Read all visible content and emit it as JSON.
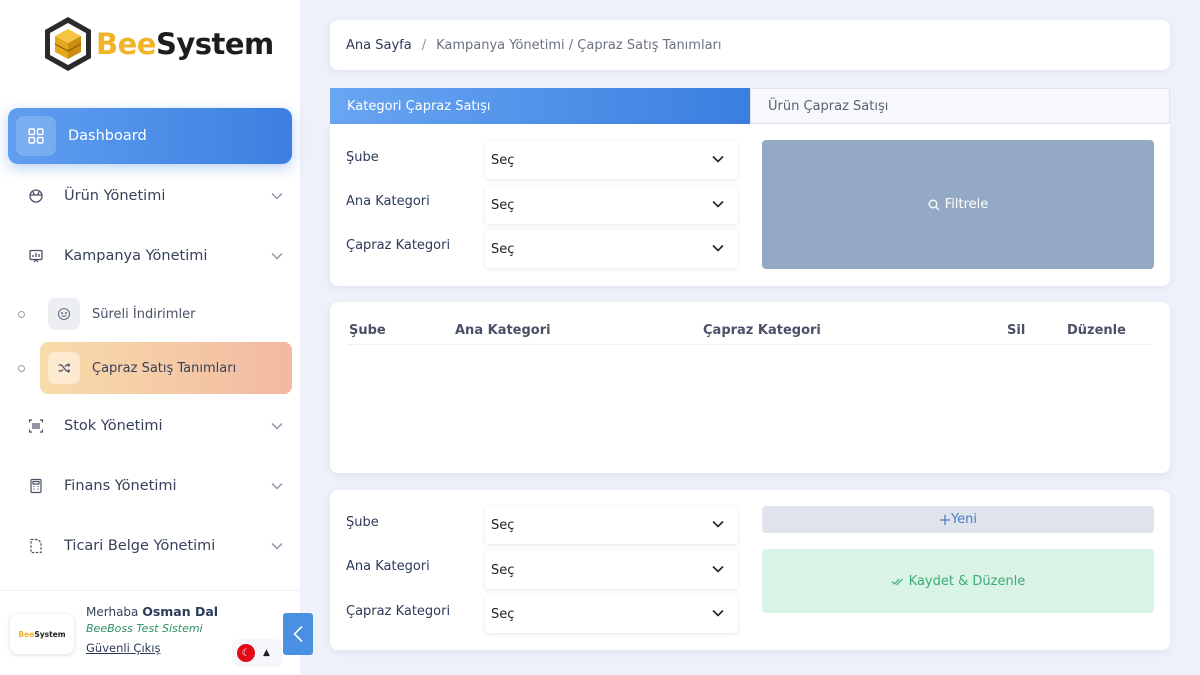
{
  "brand": {
    "name_part1": "Bee",
    "name_part2": "System",
    "avatar_part1": "Bee",
    "avatar_part2": "System"
  },
  "sidebar": {
    "items": [
      {
        "label": "Dashboard",
        "icon": "grid-icon",
        "active": true
      },
      {
        "label": "Ürün Yönetimi",
        "icon": "basket-icon"
      },
      {
        "label": "Kampanya Yönetimi",
        "icon": "presentation-chart-icon"
      },
      {
        "label": "Stok Yönetimi",
        "icon": "barcode-icon"
      },
      {
        "label": "Finans Yönetimi",
        "icon": "calculator-icon"
      },
      {
        "label": "Ticari Belge Yönetimi",
        "icon": "document-icon"
      }
    ],
    "sub_items": [
      {
        "label": "Süreli İndirimler",
        "icon": "smile-icon"
      },
      {
        "label": "Çapraz Satış Tanımları",
        "icon": "shuffle-icon",
        "active": true
      }
    ]
  },
  "user": {
    "greeting": "Merhaba",
    "name": "Osman Dal",
    "system": "BeeBoss Test Sistemi",
    "logout": "Güvenli Çıkış",
    "language_icon": "turkey-flag-icon",
    "flag_symbol": "☾"
  },
  "breadcrumb": {
    "home": "Ana Sayfa",
    "separator": "/",
    "rest": "Kampanya Yönetimi / Çapraz Satış Tanımları"
  },
  "tabs": [
    {
      "label": "Kategori Çapraz Satışı",
      "active": true
    },
    {
      "label": "Ürün Çapraz Satışı"
    }
  ],
  "filter": {
    "fields": [
      {
        "label": "Şube",
        "value": "Seç"
      },
      {
        "label": "Ana Kategori",
        "value": "Seç"
      },
      {
        "label": "Çapraz Kategori",
        "value": "Seç"
      }
    ],
    "button": "Filtrele"
  },
  "table": {
    "headers": [
      "Şube",
      "Ana Kategori",
      "Çapraz Kategori",
      "Sil",
      "Düzenle"
    ],
    "rows": []
  },
  "form": {
    "fields": [
      {
        "label": "Şube",
        "value": "Seç"
      },
      {
        "label": "Ana Kategori",
        "value": "Seç"
      },
      {
        "label": "Çapraz Kategori",
        "value": "Seç"
      }
    ],
    "new_button": "Yeni",
    "save_button": "Kaydet & Düzenle"
  },
  "colors": {
    "accent": "#3c7fe0",
    "brand_yellow": "#f0b429",
    "success": "#3daa76"
  }
}
